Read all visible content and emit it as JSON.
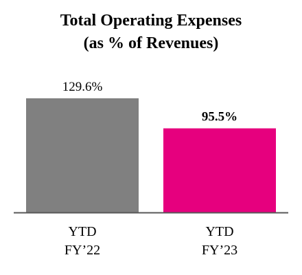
{
  "chart_data": {
    "type": "bar",
    "title": "Total Operating Expenses",
    "subtitle": "(as % of Revenues)",
    "categories": [
      [
        "YTD",
        "FY’22"
      ],
      [
        "YTD",
        "FY’23"
      ]
    ],
    "values": [
      129.6,
      95.5
    ],
    "value_labels": [
      "129.6%",
      "95.5%"
    ],
    "value_label_bold": [
      false,
      true
    ],
    "colors": [
      "#808080",
      "#E6007E"
    ],
    "ylim": [
      0,
      129.6
    ],
    "grid": false,
    "legend": "none",
    "axis_color": "#595959"
  }
}
